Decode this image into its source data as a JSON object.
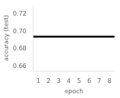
{
  "chart_data": {
    "type": "line",
    "xlabel": "epoch",
    "ylabel": "accuracy (test)",
    "x": [
      0.5,
      8.5
    ],
    "values": [
      0.694,
      0.694
    ],
    "color": "#000000",
    "xlim": [
      0.5,
      8.5
    ],
    "xticks": [
      1,
      2,
      3,
      4,
      5,
      6,
      7,
      8
    ],
    "ylim": [
      0.655,
      0.73
    ],
    "yticks": [
      0.66,
      0.68,
      {
        "value": 0.7,
        "label": "0.70"
      },
      0.72
    ],
    "grid": false
  }
}
